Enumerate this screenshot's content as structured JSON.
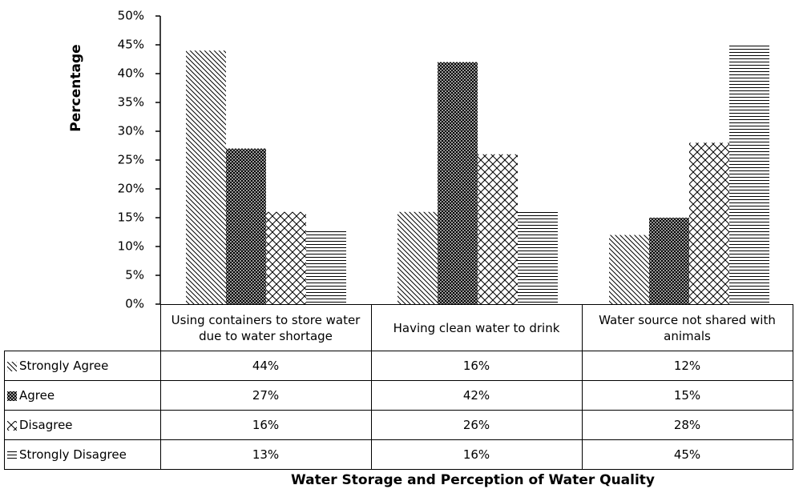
{
  "chart_data": {
    "type": "bar",
    "title": "Water Storage and Perception of Water Quality",
    "y_label": "Percentage",
    "categories": [
      "Using containers to store water due to water shortage",
      "Having clean water to drink",
      "Water source not shared with animals"
    ],
    "series": [
      {
        "name": "Strongly Agree",
        "color": "#000000",
        "pattern": "diagonal",
        "values": [
          44,
          16,
          12
        ],
        "value_labels": [
          "44%",
          "16%",
          "12%"
        ]
      },
      {
        "name": "Agree",
        "color": "#000000",
        "pattern": "dense-crosshatch",
        "values": [
          27,
          42,
          15
        ],
        "value_labels": [
          "27%",
          "42%",
          "15%"
        ]
      },
      {
        "name": "Disagree",
        "color": "#000000",
        "pattern": "diagonal-crosshatch",
        "values": [
          16,
          26,
          28
        ],
        "value_labels": [
          "16%",
          "26%",
          "28%"
        ]
      },
      {
        "name": "Strongly Disagree",
        "color": "#000000",
        "pattern": "horizontal",
        "values": [
          13,
          16,
          45
        ],
        "value_labels": [
          "13%",
          "16%",
          "45%"
        ]
      }
    ],
    "ylim": [
      0,
      50
    ],
    "yticks": [
      {
        "value": 0,
        "label": "0%"
      },
      {
        "value": 5,
        "label": "5%"
      },
      {
        "value": 10,
        "label": "10%"
      },
      {
        "value": 15,
        "label": "15%"
      },
      {
        "value": 20,
        "label": "20%"
      },
      {
        "value": 25,
        "label": "25%"
      },
      {
        "value": 30,
        "label": "30%"
      },
      {
        "value": 35,
        "label": "35%"
      },
      {
        "value": 40,
        "label": "40%"
      },
      {
        "value": 45,
        "label": "45%"
      },
      {
        "value": 50,
        "label": "50%"
      }
    ]
  }
}
